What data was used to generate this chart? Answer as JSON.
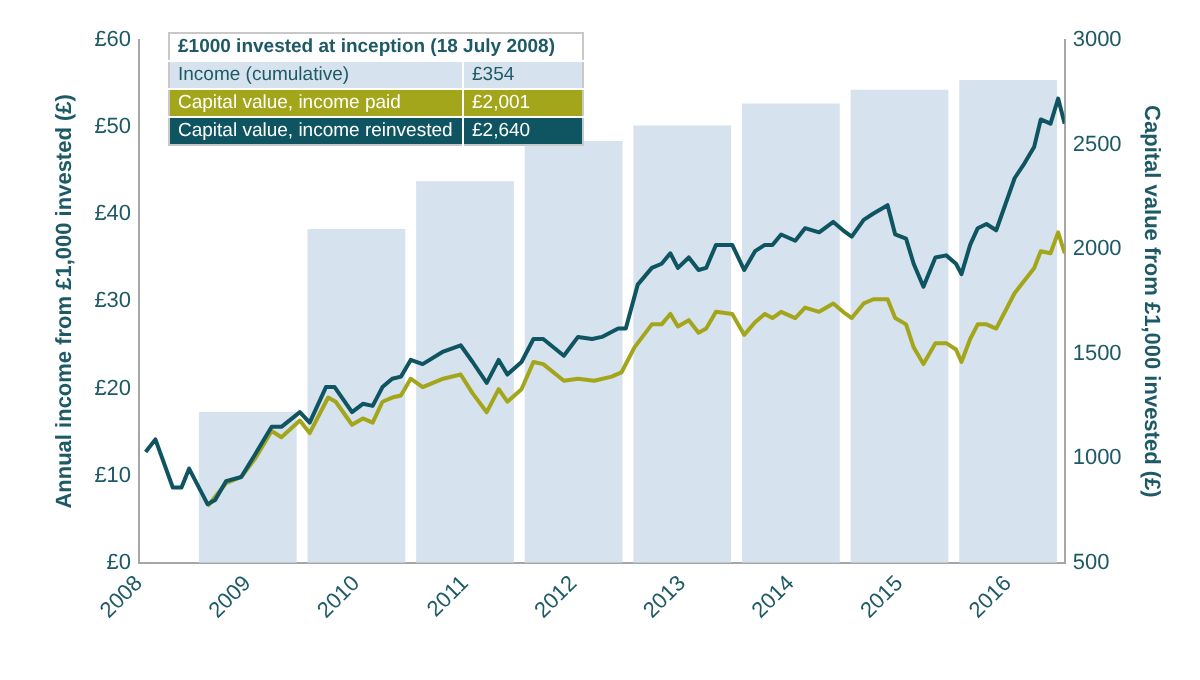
{
  "chart_data": {
    "type": "line",
    "legend_title": "£1000 invested at inception (18 July 2008)",
    "ylabel": "Annual income from £1,000 invested (£)",
    "y2label": "Capital value from £1,000 invested (£)",
    "xlim": [
      2008,
      2016.52
    ],
    "xticks": [
      2008,
      2009,
      2010,
      2011,
      2012,
      2013,
      2014,
      2015,
      2016
    ],
    "ylim": [
      0,
      60
    ],
    "yticks": [
      {
        "value": 0,
        "label": "£0"
      },
      {
        "value": 10,
        "label": "£10"
      },
      {
        "value": 20,
        "label": "£20"
      },
      {
        "value": 30,
        "label": "£30"
      },
      {
        "value": 40,
        "label": "£40"
      },
      {
        "value": 50,
        "label": "£50"
      },
      {
        "value": 60,
        "label": "£60"
      }
    ],
    "y2lim": [
      500,
      3000
    ],
    "y2ticks": [
      500,
      1000,
      1500,
      2000,
      2500,
      3000
    ],
    "legend": "top left",
    "annotations": [
      "£354",
      "£2,001",
      "£2,640"
    ],
    "series": [
      {
        "name": "Income (cumulative)",
        "type": "bar",
        "color": "#d6e2ed",
        "x": [
          2009,
          2010,
          2011,
          2012,
          2013,
          2014,
          2015,
          2016
        ],
        "values": [
          17.3,
          38.3,
          43.8,
          48.4,
          50.2,
          52.7,
          54.3,
          55.4
        ]
      },
      {
        "name": "Capital value, income paid",
        "axis": "y2",
        "color": "#a3a61a",
        "x": [
          2008.63,
          2008.8,
          2008.94,
          2009.07,
          2009.22,
          2009.31,
          2009.48,
          2009.57,
          2009.74,
          2009.81,
          2009.96,
          2010.06,
          2010.15,
          2010.24,
          2010.33,
          2010.41,
          2010.5,
          2010.61,
          2010.8,
          2010.96,
          2011.07,
          2011.2,
          2011.31,
          2011.39,
          2011.52,
          2011.63,
          2011.72,
          2011.91,
          2012.04,
          2012.19,
          2012.35,
          2012.44,
          2012.56,
          2012.72,
          2012.81,
          2012.89,
          2012.96,
          2013.06,
          2013.15,
          2013.22,
          2013.31,
          2013.46,
          2013.57,
          2013.67,
          2013.76,
          2013.83,
          2013.91,
          2014.04,
          2014.13,
          2014.26,
          2014.39,
          2014.48,
          2014.56,
          2014.67,
          2014.76,
          2014.89,
          2014.96,
          2015.06,
          2015.13,
          2015.22,
          2015.33,
          2015.43,
          2015.52,
          2015.57,
          2015.65,
          2015.72,
          2015.8,
          2015.89,
          2016.06,
          2016.15,
          2016.24,
          2016.3,
          2016.39,
          2016.46,
          2016.52
        ],
        "values": [
          770,
          880,
          910,
          1000,
          1130,
          1100,
          1180,
          1120,
          1290,
          1270,
          1160,
          1190,
          1170,
          1270,
          1290,
          1300,
          1380,
          1340,
          1380,
          1400,
          1310,
          1220,
          1330,
          1270,
          1330,
          1460,
          1450,
          1370,
          1380,
          1370,
          1390,
          1410,
          1530,
          1640,
          1640,
          1690,
          1630,
          1660,
          1600,
          1620,
          1700,
          1690,
          1590,
          1650,
          1690,
          1670,
          1700,
          1670,
          1720,
          1700,
          1740,
          1700,
          1670,
          1740,
          1760,
          1760,
          1670,
          1640,
          1530,
          1450,
          1550,
          1550,
          1520,
          1460,
          1570,
          1640,
          1640,
          1620,
          1790,
          1850,
          1910,
          1990,
          1980,
          2080,
          1980
        ]
      },
      {
        "name": "Capital value, income reinvested",
        "axis": "y2",
        "color": "#0f5461",
        "x": [
          2008.06,
          2008.15,
          2008.31,
          2008.39,
          2008.46,
          2008.63,
          2008.7,
          2008.8,
          2008.94,
          2009.07,
          2009.22,
          2009.31,
          2009.48,
          2009.57,
          2009.72,
          2009.8,
          2009.96,
          2010.06,
          2010.15,
          2010.24,
          2010.33,
          2010.41,
          2010.5,
          2010.61,
          2010.8,
          2010.96,
          2011.07,
          2011.2,
          2011.31,
          2011.39,
          2011.52,
          2011.63,
          2011.72,
          2011.91,
          2012.04,
          2012.17,
          2012.26,
          2012.41,
          2012.48,
          2012.59,
          2012.72,
          2012.81,
          2012.89,
          2012.96,
          2013.06,
          2013.15,
          2013.22,
          2013.31,
          2013.46,
          2013.57,
          2013.67,
          2013.76,
          2013.83,
          2013.91,
          2014.04,
          2014.13,
          2014.26,
          2014.39,
          2014.48,
          2014.56,
          2014.67,
          2014.76,
          2014.89,
          2014.96,
          2015.06,
          2015.13,
          2015.22,
          2015.33,
          2015.43,
          2015.52,
          2015.57,
          2015.65,
          2015.72,
          2015.8,
          2015.89,
          2016.06,
          2016.15,
          2016.24,
          2016.3,
          2016.39,
          2016.46,
          2016.52
        ],
        "values": [
          1030,
          1090,
          860,
          860,
          950,
          780,
          800,
          890,
          910,
          1020,
          1150,
          1150,
          1220,
          1170,
          1340,
          1340,
          1220,
          1260,
          1250,
          1340,
          1380,
          1390,
          1470,
          1450,
          1510,
          1540,
          1460,
          1360,
          1470,
          1400,
          1460,
          1570,
          1570,
          1490,
          1580,
          1570,
          1580,
          1620,
          1620,
          1830,
          1910,
          1930,
          1980,
          1910,
          1960,
          1900,
          1910,
          2020,
          2020,
          1900,
          1990,
          2020,
          2020,
          2070,
          2040,
          2100,
          2080,
          2130,
          2090,
          2060,
          2140,
          2170,
          2210,
          2070,
          2050,
          1930,
          1820,
          1960,
          1970,
          1930,
          1880,
          2020,
          2100,
          2120,
          2090,
          2340,
          2410,
          2490,
          2620,
          2600,
          2720,
          2600
        ]
      }
    ]
  }
}
